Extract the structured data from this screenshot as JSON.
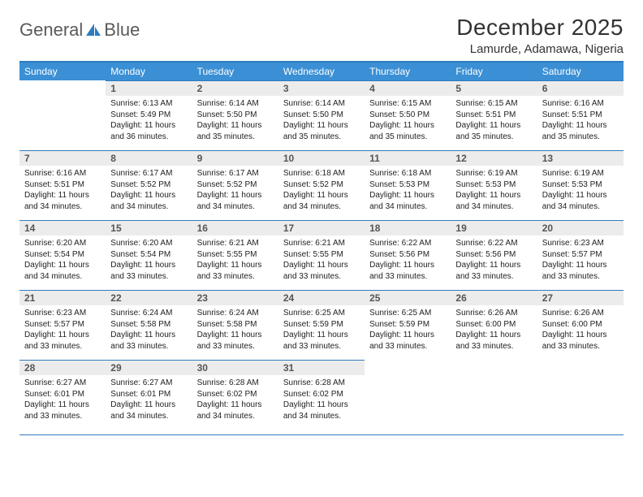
{
  "brand": {
    "part1": "General",
    "part2": "Blue"
  },
  "title": "December 2025",
  "location": "Lamurde, Adamawa, Nigeria",
  "colors": {
    "header_bg": "#3b8fd4",
    "header_text": "#ffffff",
    "rule": "#2f7bbf",
    "daynum_bg": "#ececec",
    "daynum_text": "#555555",
    "body_text": "#222222",
    "title_text": "#333333",
    "brand_gray": "#5a5a5a",
    "brand_blue": "#2f7bbf",
    "page_bg": "#ffffff"
  },
  "typography": {
    "title_fontsize": 28,
    "location_fontsize": 15,
    "header_fontsize": 12,
    "daynum_fontsize": 12,
    "cell_fontsize": 10
  },
  "weekday_headers": [
    "Sunday",
    "Monday",
    "Tuesday",
    "Wednesday",
    "Thursday",
    "Friday",
    "Saturday"
  ],
  "weeks": [
    [
      null,
      {
        "n": "1",
        "sr": "Sunrise: 6:13 AM",
        "ss": "Sunset: 5:49 PM",
        "d1": "Daylight: 11 hours",
        "d2": "and 36 minutes."
      },
      {
        "n": "2",
        "sr": "Sunrise: 6:14 AM",
        "ss": "Sunset: 5:50 PM",
        "d1": "Daylight: 11 hours",
        "d2": "and 35 minutes."
      },
      {
        "n": "3",
        "sr": "Sunrise: 6:14 AM",
        "ss": "Sunset: 5:50 PM",
        "d1": "Daylight: 11 hours",
        "d2": "and 35 minutes."
      },
      {
        "n": "4",
        "sr": "Sunrise: 6:15 AM",
        "ss": "Sunset: 5:50 PM",
        "d1": "Daylight: 11 hours",
        "d2": "and 35 minutes."
      },
      {
        "n": "5",
        "sr": "Sunrise: 6:15 AM",
        "ss": "Sunset: 5:51 PM",
        "d1": "Daylight: 11 hours",
        "d2": "and 35 minutes."
      },
      {
        "n": "6",
        "sr": "Sunrise: 6:16 AM",
        "ss": "Sunset: 5:51 PM",
        "d1": "Daylight: 11 hours",
        "d2": "and 35 minutes."
      }
    ],
    [
      {
        "n": "7",
        "sr": "Sunrise: 6:16 AM",
        "ss": "Sunset: 5:51 PM",
        "d1": "Daylight: 11 hours",
        "d2": "and 34 minutes."
      },
      {
        "n": "8",
        "sr": "Sunrise: 6:17 AM",
        "ss": "Sunset: 5:52 PM",
        "d1": "Daylight: 11 hours",
        "d2": "and 34 minutes."
      },
      {
        "n": "9",
        "sr": "Sunrise: 6:17 AM",
        "ss": "Sunset: 5:52 PM",
        "d1": "Daylight: 11 hours",
        "d2": "and 34 minutes."
      },
      {
        "n": "10",
        "sr": "Sunrise: 6:18 AM",
        "ss": "Sunset: 5:52 PM",
        "d1": "Daylight: 11 hours",
        "d2": "and 34 minutes."
      },
      {
        "n": "11",
        "sr": "Sunrise: 6:18 AM",
        "ss": "Sunset: 5:53 PM",
        "d1": "Daylight: 11 hours",
        "d2": "and 34 minutes."
      },
      {
        "n": "12",
        "sr": "Sunrise: 6:19 AM",
        "ss": "Sunset: 5:53 PM",
        "d1": "Daylight: 11 hours",
        "d2": "and 34 minutes."
      },
      {
        "n": "13",
        "sr": "Sunrise: 6:19 AM",
        "ss": "Sunset: 5:53 PM",
        "d1": "Daylight: 11 hours",
        "d2": "and 34 minutes."
      }
    ],
    [
      {
        "n": "14",
        "sr": "Sunrise: 6:20 AM",
        "ss": "Sunset: 5:54 PM",
        "d1": "Daylight: 11 hours",
        "d2": "and 34 minutes."
      },
      {
        "n": "15",
        "sr": "Sunrise: 6:20 AM",
        "ss": "Sunset: 5:54 PM",
        "d1": "Daylight: 11 hours",
        "d2": "and 33 minutes."
      },
      {
        "n": "16",
        "sr": "Sunrise: 6:21 AM",
        "ss": "Sunset: 5:55 PM",
        "d1": "Daylight: 11 hours",
        "d2": "and 33 minutes."
      },
      {
        "n": "17",
        "sr": "Sunrise: 6:21 AM",
        "ss": "Sunset: 5:55 PM",
        "d1": "Daylight: 11 hours",
        "d2": "and 33 minutes."
      },
      {
        "n": "18",
        "sr": "Sunrise: 6:22 AM",
        "ss": "Sunset: 5:56 PM",
        "d1": "Daylight: 11 hours",
        "d2": "and 33 minutes."
      },
      {
        "n": "19",
        "sr": "Sunrise: 6:22 AM",
        "ss": "Sunset: 5:56 PM",
        "d1": "Daylight: 11 hours",
        "d2": "and 33 minutes."
      },
      {
        "n": "20",
        "sr": "Sunrise: 6:23 AM",
        "ss": "Sunset: 5:57 PM",
        "d1": "Daylight: 11 hours",
        "d2": "and 33 minutes."
      }
    ],
    [
      {
        "n": "21",
        "sr": "Sunrise: 6:23 AM",
        "ss": "Sunset: 5:57 PM",
        "d1": "Daylight: 11 hours",
        "d2": "and 33 minutes."
      },
      {
        "n": "22",
        "sr": "Sunrise: 6:24 AM",
        "ss": "Sunset: 5:58 PM",
        "d1": "Daylight: 11 hours",
        "d2": "and 33 minutes."
      },
      {
        "n": "23",
        "sr": "Sunrise: 6:24 AM",
        "ss": "Sunset: 5:58 PM",
        "d1": "Daylight: 11 hours",
        "d2": "and 33 minutes."
      },
      {
        "n": "24",
        "sr": "Sunrise: 6:25 AM",
        "ss": "Sunset: 5:59 PM",
        "d1": "Daylight: 11 hours",
        "d2": "and 33 minutes."
      },
      {
        "n": "25",
        "sr": "Sunrise: 6:25 AM",
        "ss": "Sunset: 5:59 PM",
        "d1": "Daylight: 11 hours",
        "d2": "and 33 minutes."
      },
      {
        "n": "26",
        "sr": "Sunrise: 6:26 AM",
        "ss": "Sunset: 6:00 PM",
        "d1": "Daylight: 11 hours",
        "d2": "and 33 minutes."
      },
      {
        "n": "27",
        "sr": "Sunrise: 6:26 AM",
        "ss": "Sunset: 6:00 PM",
        "d1": "Daylight: 11 hours",
        "d2": "and 33 minutes."
      }
    ],
    [
      {
        "n": "28",
        "sr": "Sunrise: 6:27 AM",
        "ss": "Sunset: 6:01 PM",
        "d1": "Daylight: 11 hours",
        "d2": "and 33 minutes."
      },
      {
        "n": "29",
        "sr": "Sunrise: 6:27 AM",
        "ss": "Sunset: 6:01 PM",
        "d1": "Daylight: 11 hours",
        "d2": "and 34 minutes."
      },
      {
        "n": "30",
        "sr": "Sunrise: 6:28 AM",
        "ss": "Sunset: 6:02 PM",
        "d1": "Daylight: 11 hours",
        "d2": "and 34 minutes."
      },
      {
        "n": "31",
        "sr": "Sunrise: 6:28 AM",
        "ss": "Sunset: 6:02 PM",
        "d1": "Daylight: 11 hours",
        "d2": "and 34 minutes."
      },
      null,
      null,
      null
    ]
  ]
}
